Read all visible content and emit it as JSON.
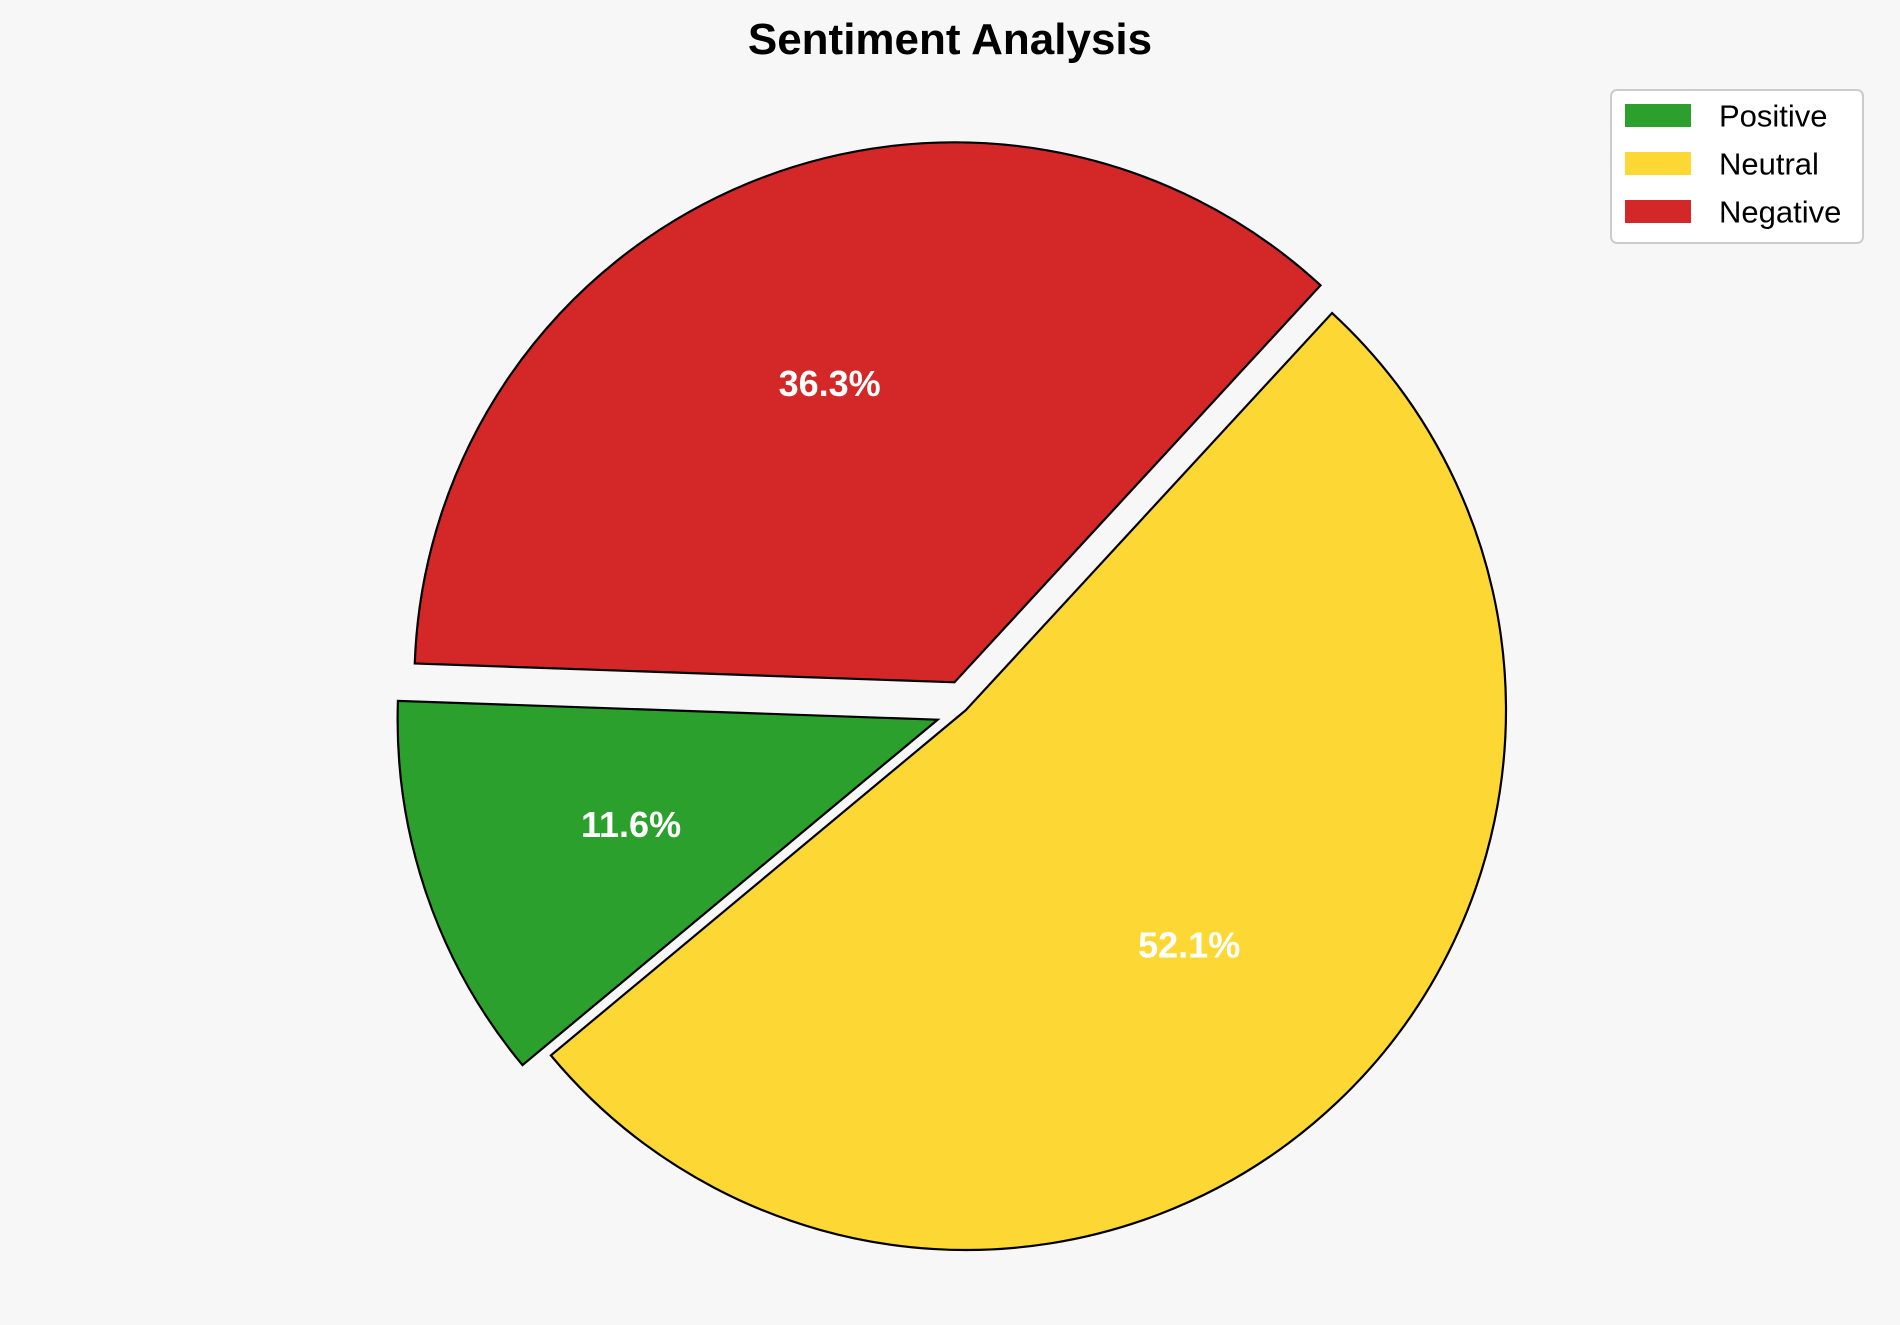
{
  "chart_data": {
    "type": "pie",
    "title": "Sentiment Analysis",
    "categories": [
      "Positive",
      "Neutral",
      "Negative"
    ],
    "values": [
      11.6,
      52.1,
      36.3
    ],
    "value_labels": [
      "11.6%",
      "52.1%",
      "36.3%"
    ],
    "colors": [
      "#2ca02c",
      "#fdd835",
      "#d32728"
    ],
    "exploded": [
      true,
      false,
      true
    ],
    "start_angle_deg": 178,
    "direction": "counterclockwise",
    "edge_color": "#000000",
    "legend": {
      "position": "top-right",
      "entries": [
        "Positive",
        "Neutral",
        "Negative"
      ]
    }
  }
}
